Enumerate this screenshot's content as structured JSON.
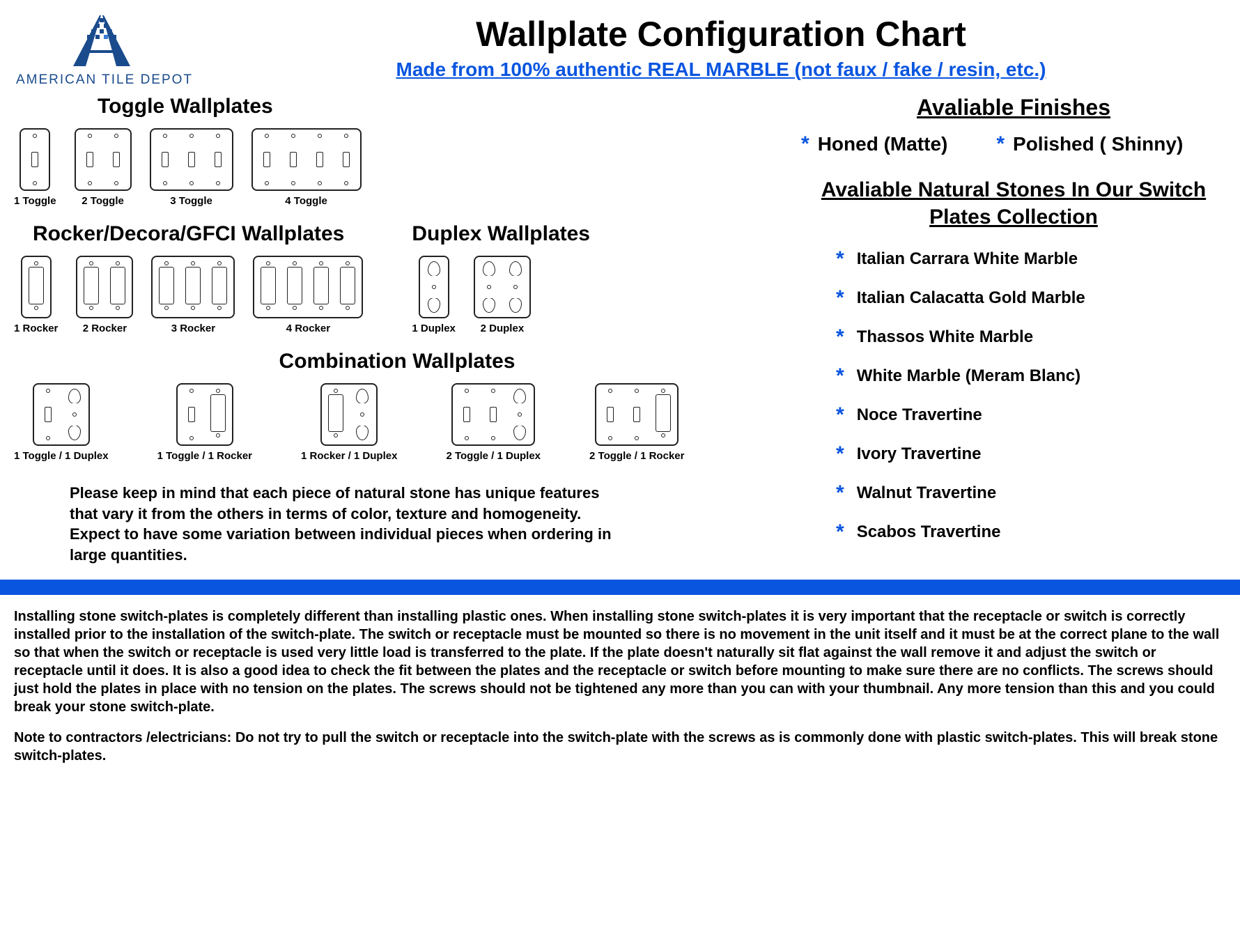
{
  "colors": {
    "brand_blue": "#0a55e0",
    "logo_blue": "#1a4b8c",
    "text": "#000000",
    "background": "#ffffff",
    "plate_border": "#222222"
  },
  "logo_text": "AMERICAN TILE DEPOT",
  "title": "Wallplate Configuration Chart",
  "subtitle_link": "Made from 100% authentic REAL MARBLE (not faux / fake / resin, etc.)",
  "sections": {
    "toggle": {
      "title": "Toggle Wallplates",
      "items": [
        {
          "label": "1 Toggle",
          "gangs": 1,
          "type": "toggle"
        },
        {
          "label": "2 Toggle",
          "gangs": 2,
          "type": "toggle"
        },
        {
          "label": "3 Toggle",
          "gangs": 3,
          "type": "toggle"
        },
        {
          "label": "4 Toggle",
          "gangs": 4,
          "type": "toggle"
        }
      ]
    },
    "rocker": {
      "title": "Rocker/Decora/GFCI Wallplates",
      "items": [
        {
          "label": "1 Rocker",
          "gangs": 1,
          "type": "rocker"
        },
        {
          "label": "2 Rocker",
          "gangs": 2,
          "type": "rocker"
        },
        {
          "label": "3 Rocker",
          "gangs": 3,
          "type": "rocker"
        },
        {
          "label": "4 Rocker",
          "gangs": 4,
          "type": "rocker"
        }
      ]
    },
    "duplex": {
      "title": "Duplex Wallplates",
      "items": [
        {
          "label": "1 Duplex",
          "gangs": 1,
          "type": "duplex"
        },
        {
          "label": "2 Duplex",
          "gangs": 2,
          "type": "duplex"
        }
      ]
    },
    "combo": {
      "title": "Combination Wallplates",
      "items": [
        {
          "label": "1 Toggle / 1 Duplex",
          "pattern": [
            "toggle",
            "duplex"
          ]
        },
        {
          "label": "1 Toggle / 1 Rocker",
          "pattern": [
            "toggle",
            "rocker"
          ]
        },
        {
          "label": "1 Rocker / 1 Duplex",
          "pattern": [
            "rocker",
            "duplex"
          ]
        },
        {
          "label": "2 Toggle / 1 Duplex",
          "pattern": [
            "toggle",
            "toggle",
            "duplex"
          ]
        },
        {
          "label": "2 Toggle / 1 Rocker",
          "pattern": [
            "toggle",
            "toggle",
            "rocker"
          ]
        }
      ]
    }
  },
  "variation_note": "Please keep in mind that each piece of natural stone has unique features that vary it from the others in terms of color, texture and homogeneity. Expect to have some variation between individual pieces when ordering in large quantities.",
  "finishes": {
    "title": "Avaliable Finishes",
    "items": [
      "Honed (Matte)",
      "Polished ( Shinny)"
    ]
  },
  "stones": {
    "title": "Avaliable Natural Stones In Our Switch Plates Collection",
    "items": [
      "Italian Carrara White Marble",
      "Italian Calacatta Gold Marble",
      "Thassos White Marble",
      "White Marble (Meram Blanc)",
      "Noce Travertine",
      "Ivory Travertine",
      "Walnut Travertine",
      "Scabos Travertine"
    ]
  },
  "install_para": "Installing stone switch-plates is completely different than installing plastic ones. When installing stone switch-plates it is very important that the receptacle or switch is correctly installed prior to the installation of the switch-plate. The switch or receptacle must be mounted so there is no movement in the unit itself and it must be at the correct plane to the wall so that when the switch or receptacle is used very little load is transferred to the plate. If the plate doesn't naturally sit flat against the wall remove it and adjust the switch or receptacle until it does. It is also a good idea to check the fit between the plates and the receptacle or switch before mounting to make sure there are no conflicts. The screws should just hold the plates in place with no tension on the plates. The screws should not be tightened any more than you can with your thumbnail. Any more tension than this and you could break your stone switch-plate.",
  "contractor_note": "Note to contractors /electricians: Do not try to pull the switch or receptacle into the switch-plate with the screws as is commonly done with plastic switch-plates. This will break stone switch-plates."
}
